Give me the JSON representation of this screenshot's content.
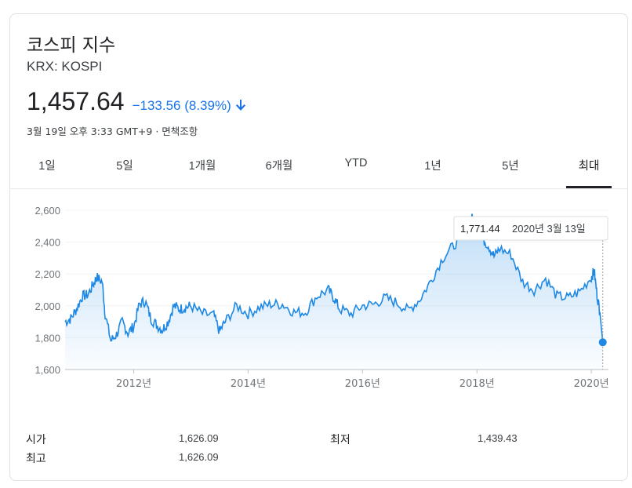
{
  "header": {
    "title": "코스피 지수",
    "ticker": "KRX: KOSPI",
    "price": "1,457.64",
    "change": "−133.56 (8.39%)",
    "timestamp": "3월 19일 오후 3:33 GMT+9 · 면책조항"
  },
  "colors": {
    "accent": "#1a73e8",
    "line": "#1e88e5",
    "text": "#202124"
  },
  "tabs": [
    {
      "label": "1일"
    },
    {
      "label": "5일"
    },
    {
      "label": "1개월"
    },
    {
      "label": "6개월"
    },
    {
      "label": "YTD"
    },
    {
      "label": "1년"
    },
    {
      "label": "5년"
    },
    {
      "label": "최대",
      "active": true
    }
  ],
  "tooltip": {
    "value": "1,771.44",
    "date": "2020년 3월 13일"
  },
  "chart_data": {
    "type": "area",
    "x": [
      2010.8,
      2010.9,
      2011.0,
      2011.1,
      2011.2,
      2011.3,
      2011.35,
      2011.45,
      2011.5,
      2011.6,
      2011.7,
      2011.8,
      2011.9,
      2012.0,
      2012.1,
      2012.2,
      2012.3,
      2012.4,
      2012.5,
      2012.6,
      2012.7,
      2012.8,
      2012.9,
      2013.0,
      2013.2,
      2013.4,
      2013.5,
      2013.6,
      2013.8,
      2014.0,
      2014.2,
      2014.4,
      2014.6,
      2014.8,
      2015.0,
      2015.2,
      2015.4,
      2015.5,
      2015.6,
      2015.8,
      2016.0,
      2016.2,
      2016.4,
      2016.6,
      2016.8,
      2017.0,
      2017.2,
      2017.4,
      2017.6,
      2017.8,
      2017.9,
      2018.0,
      2018.1,
      2018.2,
      2018.3,
      2018.4,
      2018.6,
      2018.8,
      2019.0,
      2019.2,
      2019.4,
      2019.6,
      2019.8,
      2020.0,
      2020.05,
      2020.1,
      2020.15,
      2020.2
    ],
    "y": [
      1900,
      1920,
      1980,
      2060,
      2070,
      2140,
      2180,
      2150,
      1950,
      1780,
      1820,
      1900,
      1830,
      1870,
      2010,
      2030,
      1920,
      1880,
      1850,
      1900,
      2000,
      1980,
      1990,
      2000,
      1950,
      1940,
      1840,
      1900,
      2000,
      1950,
      1990,
      2010,
      2010,
      1960,
      1960,
      2060,
      2100,
      2050,
      1980,
      1950,
      2000,
      2010,
      2050,
      2020,
      1970,
      2040,
      2160,
      2300,
      2380,
      2480,
      2550,
      2520,
      2420,
      2380,
      2310,
      2360,
      2320,
      2150,
      2100,
      2170,
      2060,
      2050,
      2090,
      2180,
      2220,
      2070,
      1960,
      1771
    ],
    "xlabel": "",
    "ylabel": "",
    "xlim": [
      2010.8,
      2020.3
    ],
    "ylim": [
      1600,
      2600
    ],
    "yticks": [
      "1,600",
      "1,800",
      "2,000",
      "2,200",
      "2,400",
      "2,600"
    ],
    "ytick_values": [
      1600,
      1800,
      2000,
      2200,
      2400,
      2600
    ],
    "xticks": [
      "2012년",
      "2014년",
      "2016년",
      "2018년",
      "2020년"
    ],
    "xtick_values": [
      2012,
      2014,
      2016,
      2018,
      2020
    ]
  },
  "stats": {
    "open_label": "시가",
    "open_value": "1,626.09",
    "high_label": "최고",
    "high_value": "1,626.09",
    "low_label": "최저",
    "low_value": "1,439.43"
  }
}
